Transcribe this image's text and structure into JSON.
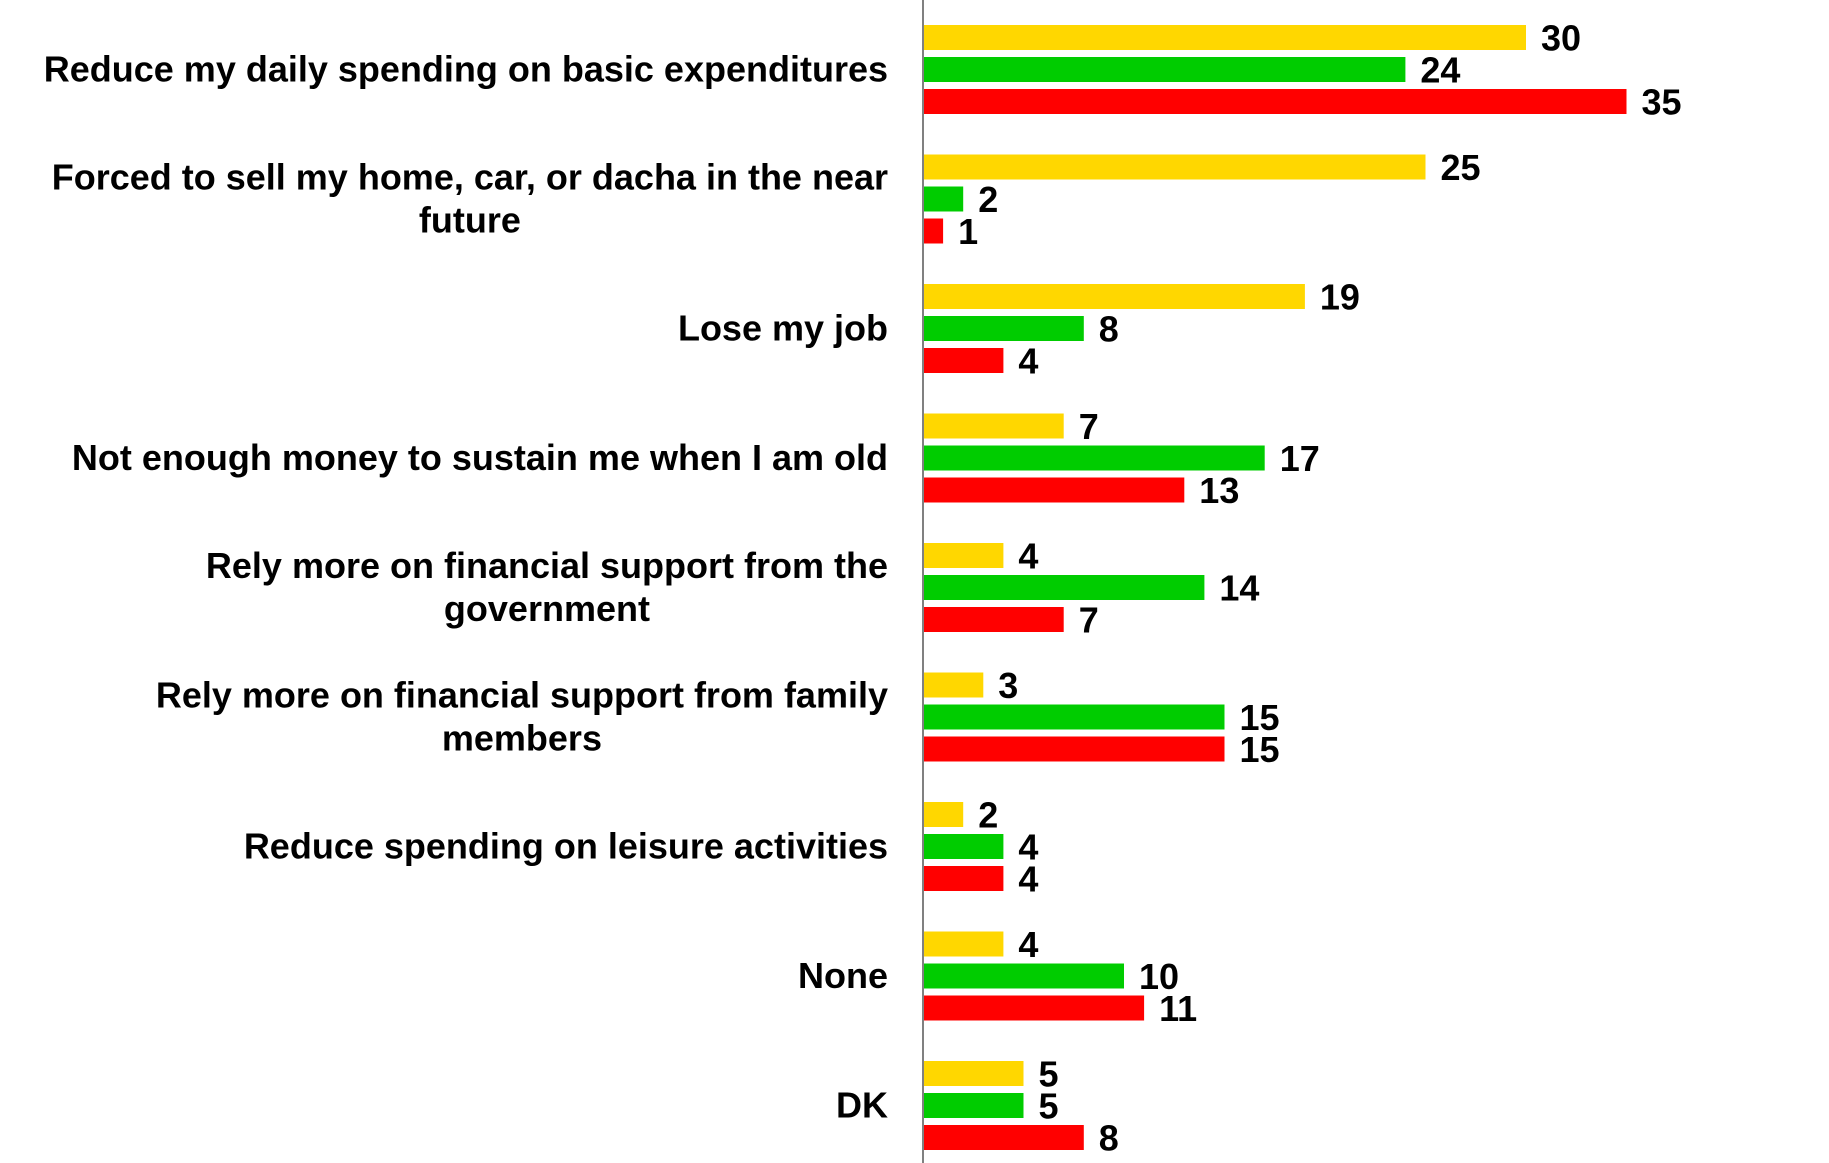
{
  "chart_data": {
    "type": "bar",
    "orientation": "horizontal",
    "categories": [
      "Reduce my daily spending on basic expenditures",
      "Forced to sell my home, car, or dacha in the near future",
      "Lose my job",
      "Not enough money to sustain me when I am old",
      "Rely more on financial support from the government",
      "Rely more on financial support from family members",
      "Reduce spending on leisure activities",
      "None",
      "DK"
    ],
    "category_lines": [
      [
        "Reduce my daily spending on basic expenditures"
      ],
      [
        "Forced to sell my home, car, or dacha in the near",
        "future"
      ],
      [
        "Lose my job"
      ],
      [
        "Not enough money to sustain me when I am old"
      ],
      [
        "Rely more on financial support from the",
        "government"
      ],
      [
        "Rely more on financial support from family",
        "members"
      ],
      [
        "Reduce spending on leisure activities"
      ],
      [
        "None"
      ],
      [
        "DK"
      ]
    ],
    "series": [
      {
        "color": "#FFD700",
        "values": [
          30,
          25,
          19,
          7,
          4,
          3,
          2,
          4,
          5
        ]
      },
      {
        "color": "#00CC00",
        "values": [
          24,
          2,
          8,
          17,
          14,
          15,
          4,
          10,
          5
        ]
      },
      {
        "color": "#FF0000",
        "values": [
          35,
          1,
          4,
          13,
          7,
          15,
          4,
          11,
          8
        ]
      }
    ],
    "xlim": [
      0,
      35
    ],
    "grid": false,
    "legend": "none",
    "title": "",
    "xlabel": "",
    "ylabel": ""
  }
}
